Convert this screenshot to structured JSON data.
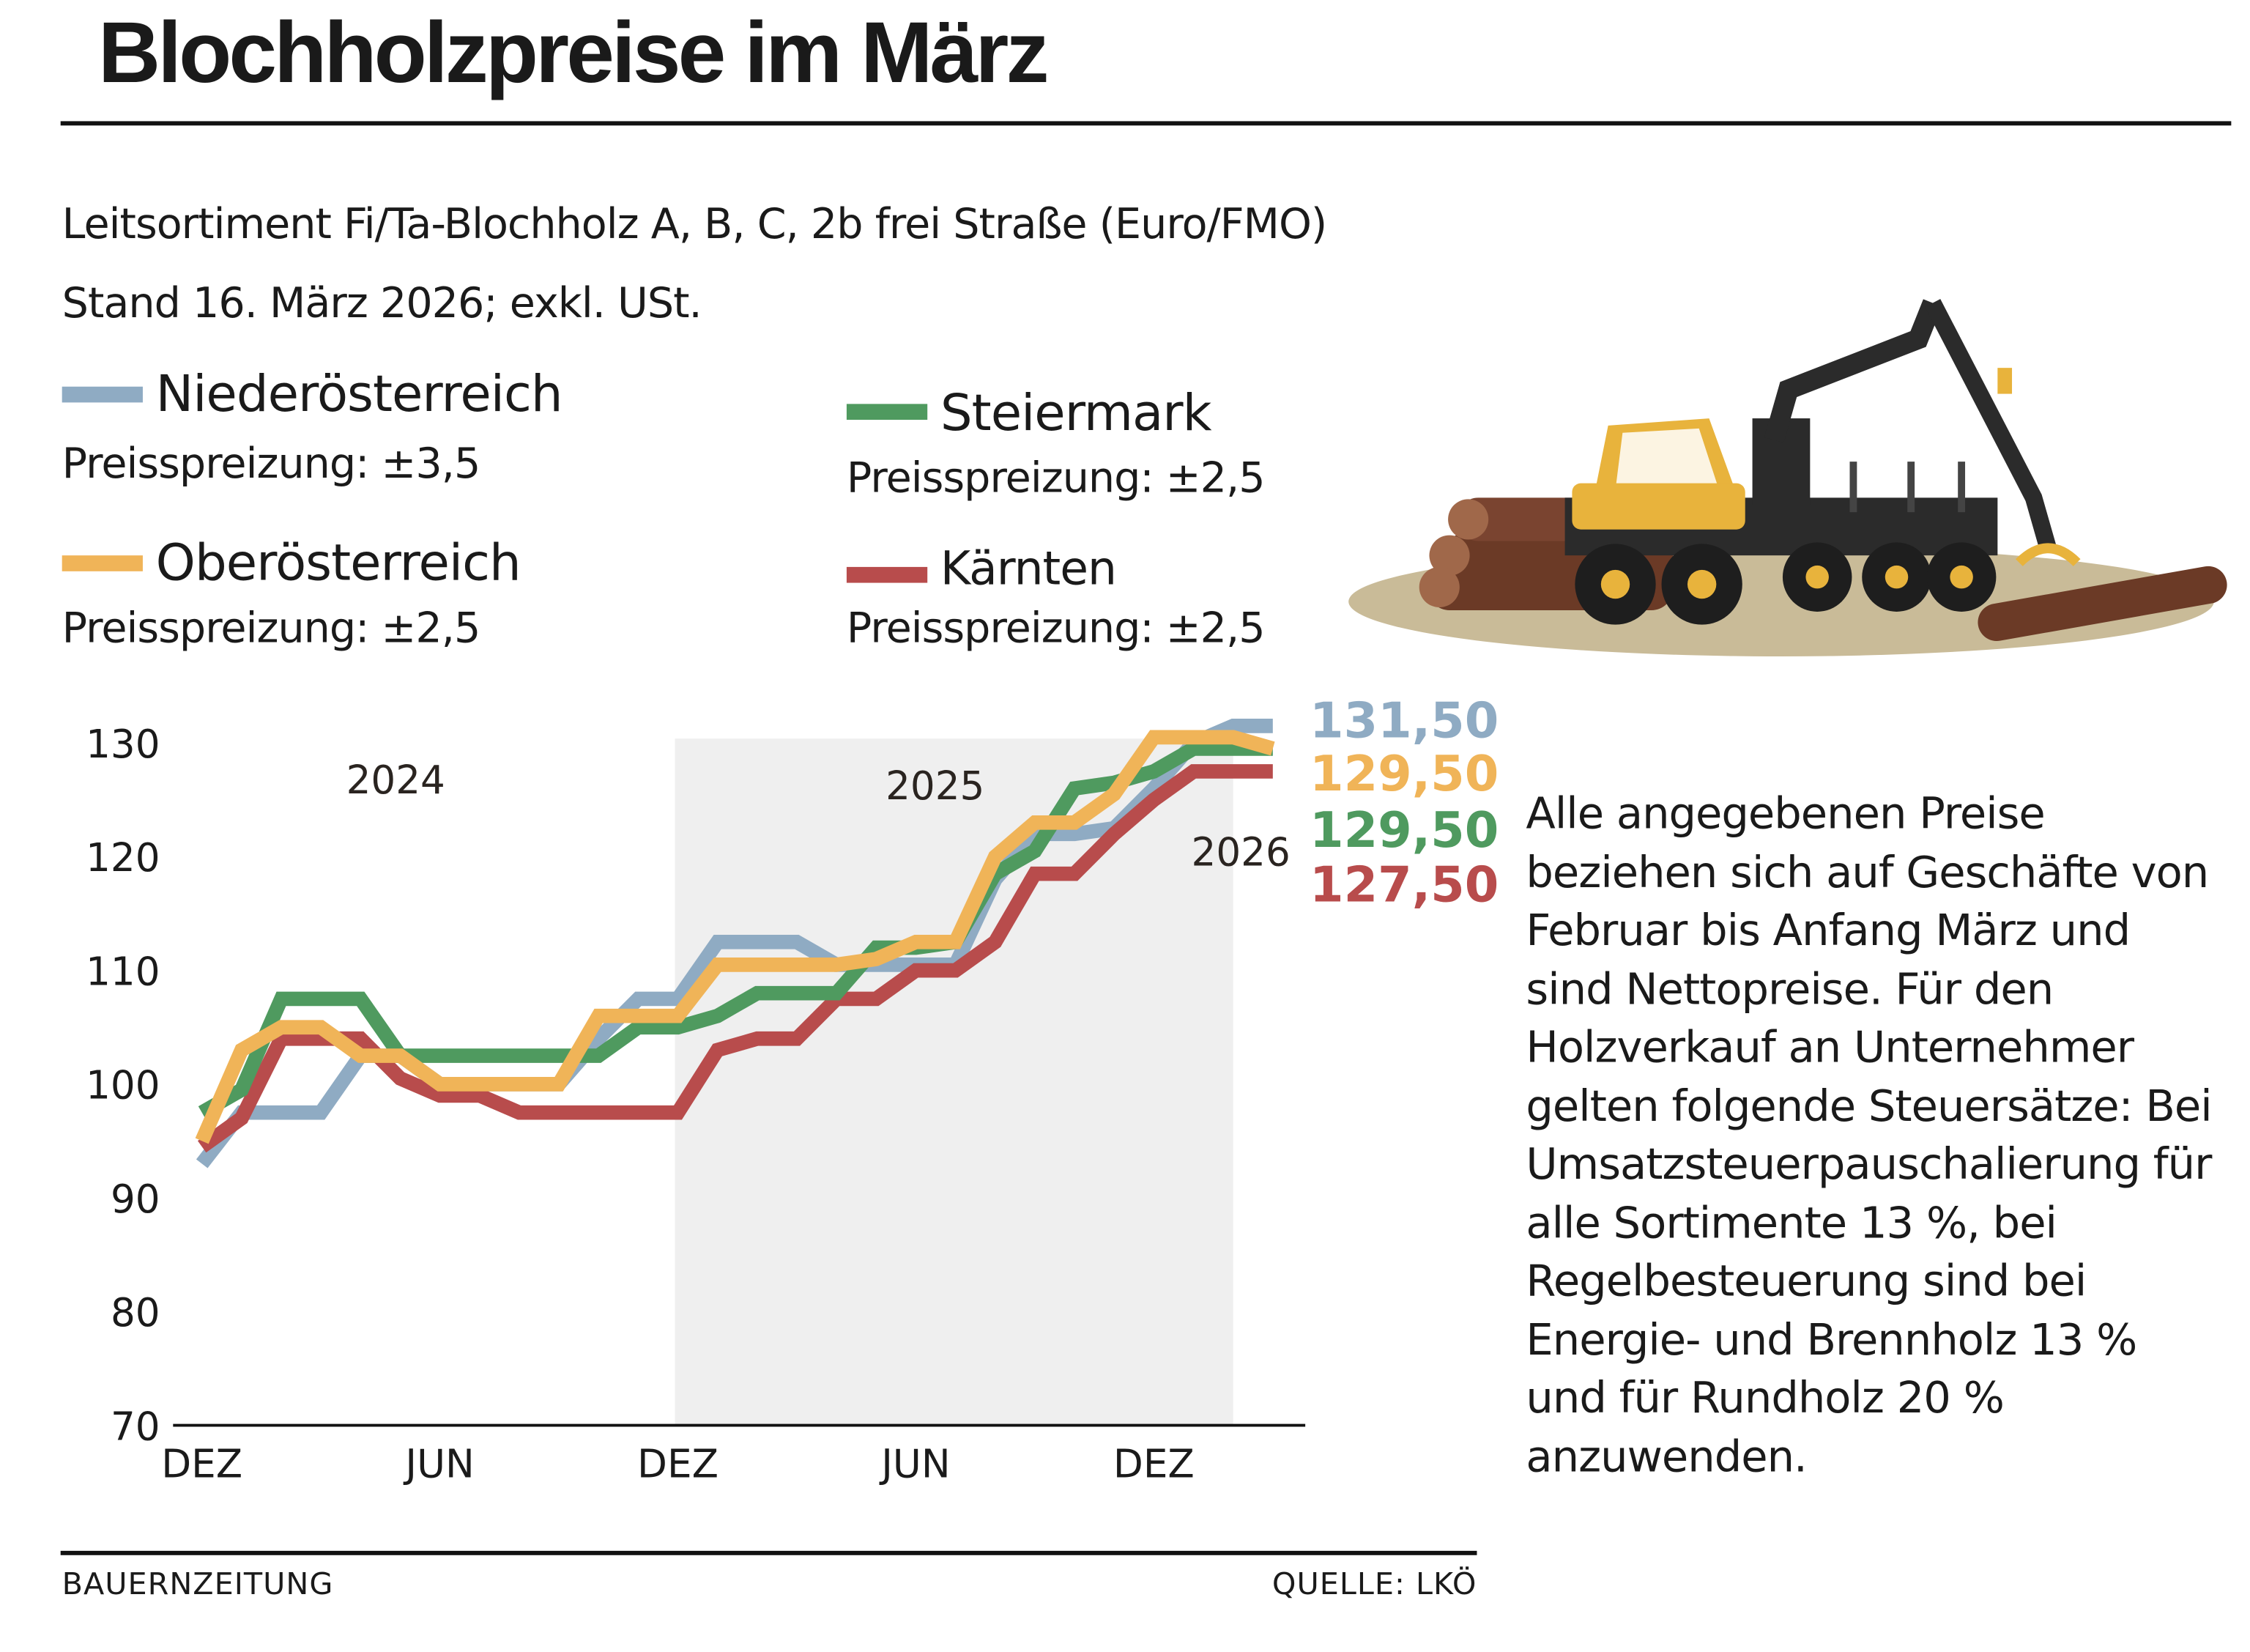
{
  "title": "Blochholzpreise im März",
  "subtitle_line1": "Leitsortiment Fi/Ta-Blochholz A, B, C, 2b frei Straße (Euro/FMO)",
  "subtitle_line2": "Stand 16. März 2026; exkl. USt.",
  "legend": [
    {
      "name": "Niederösterreich",
      "spread": "Preisspreizung: ±3,5",
      "color": "#8fabc3"
    },
    {
      "name": "Oberösterreich",
      "spread": "Preisspreizung: ±2,5",
      "color": "#f0b458"
    },
    {
      "name": "Steiermark",
      "spread": "Preisspreizung: ±2,5",
      "color": "#4f9a5f"
    },
    {
      "name": "Kärnten",
      "spread": "Preisspreizung: ±2,5",
      "color": "#b84c4c"
    }
  ],
  "note": "Alle angegebenen Preise beziehen sich auf Geschäfte von Februar bis Anfang März und sind Nettopreise. Für den Holzverkauf an Unternehmer gelten folgende Steuersätze: Bei Umsatzsteuerpauschalierung für alle Sortimente 13 %, bei Regelbesteuerung sind bei Energie- und Brennholz 13 % und für Rundholz 20 % anzuwenden.",
  "footer": {
    "left": "BAUERNZEITUNG",
    "right": "QUELLE: LKÖ"
  },
  "chart_data": {
    "type": "line",
    "title": "",
    "xlabel": "",
    "ylabel": "",
    "ylim": [
      70,
      130
    ],
    "yticks": [
      "130",
      "120",
      "110",
      "100",
      "90",
      "80",
      "70"
    ],
    "ytick_values": [
      130,
      120,
      110,
      100,
      90,
      80,
      70
    ],
    "x": [
      "Dez 2023",
      "Jan 2024",
      "Feb 2024",
      "Mär 2024",
      "Apr 2024",
      "Mai 2024",
      "Jun 2024",
      "Jul 2024",
      "Aug 2024",
      "Sep 2024",
      "Okt 2024",
      "Nov 2024",
      "Dez 2024",
      "Jan 2025",
      "Feb 2025",
      "Mär 2025",
      "Apr 2025",
      "Mai 2025",
      "Jun 2025",
      "Jul 2025",
      "Aug 2025",
      "Sep 2025",
      "Okt 2025",
      "Nov 2025",
      "Dez 2025",
      "Jan 2026",
      "Feb 2026",
      "Mär 2026"
    ],
    "xtick_labels": [
      {
        "index": 0,
        "label": "DEZ"
      },
      {
        "index": 6,
        "label": "JUN"
      },
      {
        "index": 12,
        "label": "DEZ"
      },
      {
        "index": 18,
        "label": "JUN"
      },
      {
        "index": 24,
        "label": "DEZ"
      }
    ],
    "year_labels": [
      "2024",
      "2025",
      "2026"
    ],
    "shaded_period": [
      "Dez 2024",
      "Feb 2026"
    ],
    "grid": false,
    "series": [
      {
        "name": "Niederösterreich",
        "color": "#8fabc3",
        "end_label": "131,50",
        "values": [
          93,
          97.5,
          97.5,
          97.5,
          102.5,
          102.5,
          100,
          100,
          100,
          100,
          104,
          107.5,
          107.5,
          112.5,
          112.5,
          112.5,
          110.5,
          110.5,
          110.5,
          110.5,
          118,
          122,
          122,
          122.5,
          126,
          130,
          131.5,
          131.5
        ]
      },
      {
        "name": "Oberösterreich",
        "color": "#f0b458",
        "end_label": "129,50",
        "values": [
          95,
          103,
          105,
          105,
          102.5,
          102.5,
          100,
          100,
          100,
          100,
          106,
          106,
          106,
          110.5,
          110.5,
          110.5,
          110.5,
          111,
          112.5,
          112.5,
          120,
          123,
          123,
          125.5,
          130.5,
          130.5,
          130.5,
          129.5
        ]
      },
      {
        "name": "Steiermark",
        "color": "#4f9a5f",
        "end_label": "129,50",
        "values": [
          97.5,
          99.5,
          107.5,
          107.5,
          107.5,
          102.5,
          102.5,
          102.5,
          102.5,
          102.5,
          102.5,
          105,
          105,
          106,
          108,
          108,
          108,
          112,
          112,
          112.5,
          118.5,
          120.5,
          126,
          126.5,
          127.5,
          129.5,
          129.5,
          129.5
        ]
      },
      {
        "name": "Kärnten",
        "color": "#b84c4c",
        "end_label": "127,50",
        "values": [
          94.5,
          97,
          104,
          104,
          104,
          100.5,
          99,
          99,
          97.5,
          97.5,
          97.5,
          97.5,
          97.5,
          103,
          104,
          104,
          107.5,
          107.5,
          110,
          110,
          112.5,
          118.5,
          118.5,
          122,
          125,
          127.5,
          127.5,
          127.5
        ]
      }
    ]
  }
}
